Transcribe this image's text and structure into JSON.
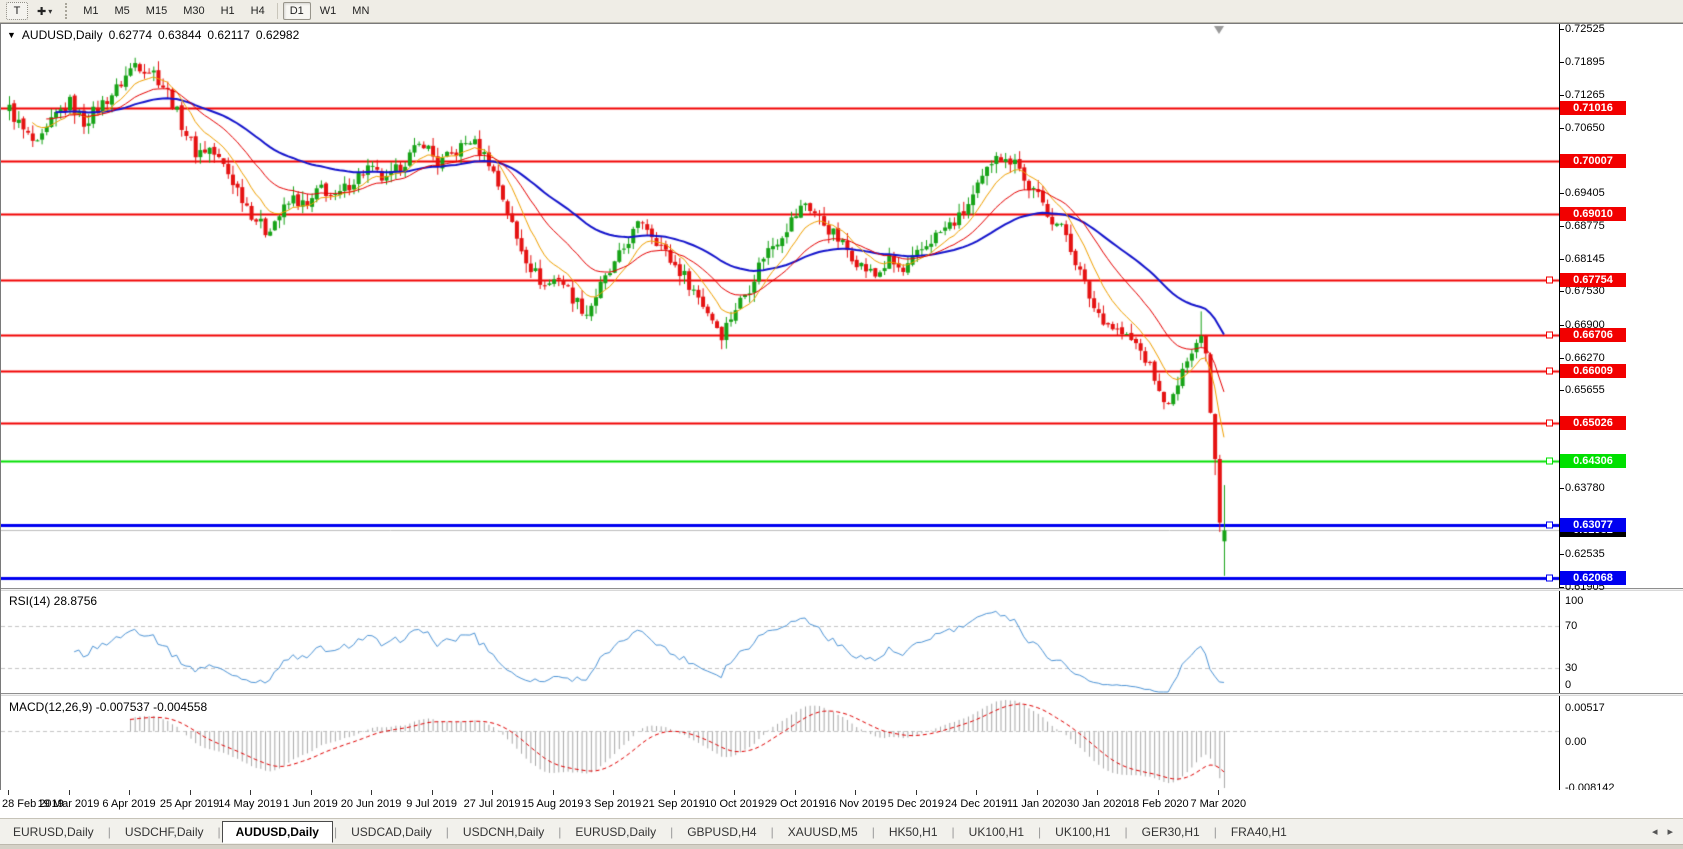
{
  "toolbar": {
    "text_tool_label": "T",
    "timeframes": [
      "M1",
      "M5",
      "M15",
      "M30",
      "H1",
      "H4",
      "D1",
      "W1",
      "MN"
    ],
    "active_timeframe": "D1"
  },
  "icons": {
    "title_dropdown": "▼",
    "cursor_tool": "✚",
    "dropdown_caret": "▾",
    "tab_scroll_left": "◂",
    "tab_scroll_right": "▸"
  },
  "chart": {
    "title_symbol": "AUDUSD,Daily",
    "ohlc": {
      "open": "0.62774",
      "high": "0.63844",
      "low": "0.62117",
      "close": "0.62982"
    },
    "price_ticks": [
      {
        "label": "0.72525",
        "price": 0.72525
      },
      {
        "label": "0.71895",
        "price": 0.71895
      },
      {
        "label": "0.71265",
        "price": 0.71265
      },
      {
        "label": "0.70650",
        "price": 0.7065
      },
      {
        "label": "0.69405",
        "price": 0.69405
      },
      {
        "label": "0.68775",
        "price": 0.68775
      },
      {
        "label": "0.68145",
        "price": 0.68145
      },
      {
        "label": "0.67530",
        "price": 0.6753
      },
      {
        "label": "0.66900",
        "price": 0.669
      },
      {
        "label": "0.66270",
        "price": 0.6627
      },
      {
        "label": "0.65655",
        "price": 0.65655
      },
      {
        "label": "0.63780",
        "price": 0.6378
      },
      {
        "label": "0.62535",
        "price": 0.62535
      },
      {
        "label": "0.61905",
        "price": 0.61905
      }
    ],
    "hlines": [
      {
        "price": 0.71016,
        "label": "0.71016",
        "color": "red",
        "marker": false
      },
      {
        "price": 0.70007,
        "label": "0.70007",
        "color": "red",
        "marker": false
      },
      {
        "price": 0.6901,
        "label": "0.69010",
        "color": "red",
        "marker": false
      },
      {
        "price": 0.67754,
        "label": "0.67754",
        "color": "red",
        "marker": true
      },
      {
        "price": 0.66706,
        "label": "0.66706",
        "color": "red",
        "marker": true
      },
      {
        "price": 0.66009,
        "label": "0.66009",
        "color": "red",
        "marker": true
      },
      {
        "price": 0.65026,
        "label": "0.65026",
        "color": "red",
        "marker": true
      },
      {
        "price": 0.64306,
        "label": "0.64306",
        "color": "green",
        "marker": true
      },
      {
        "price": 0.63077,
        "label": "0.63077",
        "color": "blue",
        "marker": true
      },
      {
        "price": 0.62068,
        "label": "0.62068",
        "color": "blue",
        "marker": true
      }
    ],
    "current_price": {
      "label": "0.62982",
      "price": 0.62982
    },
    "date_axis": [
      "28 Feb 2019",
      "19 Mar 2019",
      "6 Apr 2019",
      "25 Apr 2019",
      "14 May 2019",
      "1 Jun 2019",
      "20 Jun 2019",
      "9 Jul 2019",
      "27 Jul 2019",
      "15 Aug 2019",
      "3 Sep 2019",
      "21 Sep 2019",
      "10 Oct 2019",
      "29 Oct 2019",
      "16 Nov 2019",
      "5 Dec 2019",
      "24 Dec 2019",
      "11 Jan 2020",
      "30 Jan 2020",
      "18 Feb 2020",
      "7 Mar 2020"
    ]
  },
  "rsi": {
    "label": "RSI(14) 28.8756",
    "period": 14,
    "last_value": 28.8756,
    "levels": [
      {
        "label": "100",
        "value": 100
      },
      {
        "label": "70",
        "value": 70
      },
      {
        "label": "30",
        "value": 30
      },
      {
        "label": "0",
        "value": 0
      }
    ]
  },
  "macd": {
    "label": "MACD(12,26,9) -0.007537 -0.004558",
    "values": {
      "macd": -0.007537,
      "signal": -0.004558
    },
    "axis": [
      {
        "label": "0.00517"
      },
      {
        "label": "0.00"
      },
      {
        "label": "-0.008142"
      }
    ]
  },
  "tabs": {
    "items": [
      "EURUSD,Daily",
      "USDCHF,Daily",
      "AUDUSD,Daily",
      "USDCAD,Daily",
      "USDCNH,Daily",
      "EURUSD,Daily",
      "GBPUSD,H4",
      "XAUUSD,M5",
      "HK50,H1",
      "UK100,H1",
      "UK100,H1",
      "GER30,H1",
      "FRA40,H1"
    ],
    "active": "AUDUSD,Daily"
  },
  "colors": {
    "candle_up": "#17a317",
    "candle_down": "#e51212",
    "ma_fast": "#f0a000",
    "ma_mid": "#e60000",
    "ma_slow": "#1414cc",
    "hline_red": "#f20000",
    "hline_green": "#00e000",
    "hline_blue": "#0000f0",
    "current_price_line": "#bdbdbd",
    "current_badge_bg": "#000000",
    "rsi_line": "#4d94d6",
    "level_dash": "#c4c4c4",
    "macd_hist": "#a8a8a8",
    "macd_signal": "#e00000"
  },
  "chart_data": {
    "type": "candlestick",
    "symbol": "AUDUSD",
    "timeframe": "Daily",
    "bars": 262,
    "x_range": [
      "28 Feb 2019",
      "9 Mar 2020"
    ],
    "price_range": [
      0.61905,
      0.72525
    ],
    "close_anchors": [
      [
        0,
        0.71
      ],
      [
        3,
        0.7058
      ],
      [
        6,
        0.7028
      ],
      [
        10,
        0.7088
      ],
      [
        13,
        0.7112
      ],
      [
        16,
        0.7075
      ],
      [
        19,
        0.7102
      ],
      [
        23,
        0.7138
      ],
      [
        27,
        0.7188
      ],
      [
        31,
        0.717
      ],
      [
        34,
        0.7132
      ],
      [
        37,
        0.7072
      ],
      [
        40,
        0.7018
      ],
      [
        43,
        0.7025
      ],
      [
        46,
        0.6992
      ],
      [
        49,
        0.6948
      ],
      [
        52,
        0.6902
      ],
      [
        55,
        0.6868
      ],
      [
        58,
        0.6898
      ],
      [
        61,
        0.693
      ],
      [
        64,
        0.6912
      ],
      [
        67,
        0.6952
      ],
      [
        70,
        0.6928
      ],
      [
        73,
        0.6958
      ],
      [
        77,
        0.6988
      ],
      [
        81,
        0.6962
      ],
      [
        85,
        0.7002
      ],
      [
        89,
        0.7038
      ],
      [
        92,
        0.6996
      ],
      [
        95,
        0.7012
      ],
      [
        99,
        0.7042
      ],
      [
        103,
        0.7002
      ],
      [
        106,
        0.6932
      ],
      [
        109,
        0.6852
      ],
      [
        112,
        0.68
      ],
      [
        115,
        0.6762
      ],
      [
        118,
        0.6782
      ],
      [
        121,
        0.6742
      ],
      [
        124,
        0.6712
      ],
      [
        127,
        0.6762
      ],
      [
        130,
        0.6802
      ],
      [
        133,
        0.6852
      ],
      [
        136,
        0.6888
      ],
      [
        139,
        0.6852
      ],
      [
        142,
        0.6812
      ],
      [
        145,
        0.6782
      ],
      [
        148,
        0.6742
      ],
      [
        151,
        0.6702
      ],
      [
        153,
        0.6672
      ],
      [
        156,
        0.6722
      ],
      [
        159,
        0.6762
      ],
      [
        162,
        0.6822
      ],
      [
        165,
        0.6852
      ],
      [
        168,
        0.6888
      ],
      [
        171,
        0.6922
      ],
      [
        174,
        0.6892
      ],
      [
        177,
        0.6862
      ],
      [
        180,
        0.6832
      ],
      [
        183,
        0.6802
      ],
      [
        186,
        0.6782
      ],
      [
        189,
        0.6812
      ],
      [
        192,
        0.6788
      ],
      [
        195,
        0.6822
      ],
      [
        198,
        0.6852
      ],
      [
        201,
        0.6872
      ],
      [
        204,
        0.6892
      ],
      [
        207,
        0.6932
      ],
      [
        210,
        0.6982
      ],
      [
        212,
        0.7022
      ],
      [
        214,
        0.6998
      ],
      [
        216,
        0.7012
      ],
      [
        218,
        0.6962
      ],
      [
        221,
        0.6932
      ],
      [
        224,
        0.6892
      ],
      [
        227,
        0.6862
      ],
      [
        230,
        0.6788
      ],
      [
        233,
        0.6722
      ],
      [
        236,
        0.6692
      ],
      [
        239,
        0.6672
      ],
      [
        242,
        0.6652
      ],
      [
        245,
        0.6612
      ],
      [
        247,
        0.656
      ],
      [
        249,
        0.6535
      ],
      [
        251,
        0.6575
      ],
      [
        253,
        0.6625
      ],
      [
        255,
        0.6655
      ],
      [
        256,
        0.6668
      ],
      [
        257,
        0.6635
      ],
      [
        258,
        0.6522
      ],
      [
        259,
        0.6434
      ],
      [
        260,
        0.6313
      ],
      [
        261,
        0.62982
      ]
    ],
    "last_bar": {
      "open": 0.62774,
      "high": 0.63844,
      "low": 0.62117,
      "close": 0.62982
    },
    "indicators": {
      "moving_averages": [
        {
          "color_key": "ma_fast",
          "period": 9,
          "type": "ema"
        },
        {
          "color_key": "ma_mid",
          "period": 21,
          "type": "ema"
        },
        {
          "color_key": "ma_slow",
          "period": 50,
          "type": "ema"
        }
      ],
      "rsi_period": 14,
      "macd": [
        12,
        26,
        9
      ]
    }
  }
}
